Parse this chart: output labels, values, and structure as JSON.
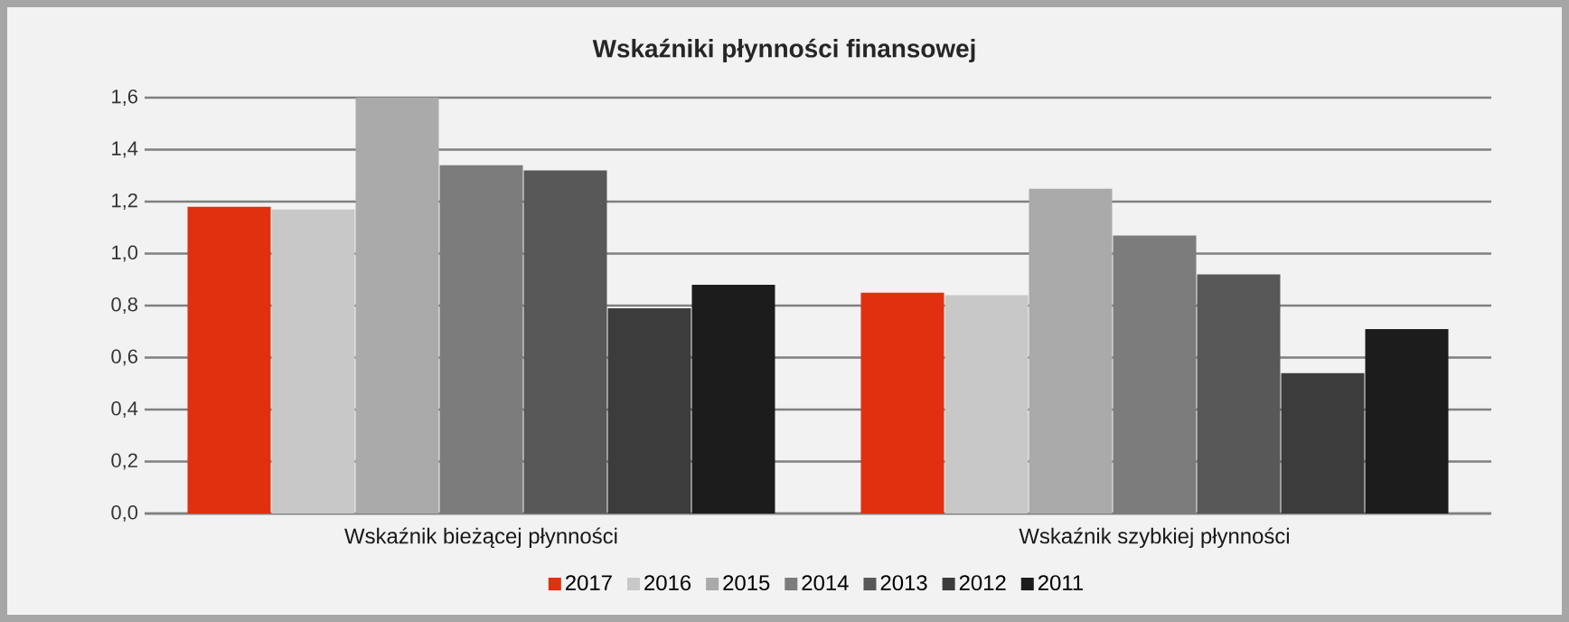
{
  "chart_data": {
    "type": "bar",
    "title": "Wskaźniki płynności finansowej",
    "categories": [
      "Wskaźnik  bieżącej płynności",
      "Wskaźnik szybkiej płynności"
    ],
    "series": [
      {
        "name": "2017",
        "color": "#e03010",
        "values": [
          1.18,
          0.85
        ]
      },
      {
        "name": "2016",
        "color": "#c8c8c8",
        "values": [
          1.17,
          0.84
        ]
      },
      {
        "name": "2015",
        "color": "#aaaaaa",
        "values": [
          1.6,
          1.25
        ]
      },
      {
        "name": "2014",
        "color": "#7c7c7c",
        "values": [
          1.34,
          1.07
        ]
      },
      {
        "name": "2013",
        "color": "#585858",
        "values": [
          1.32,
          0.92
        ]
      },
      {
        "name": "2012",
        "color": "#3c3c3c",
        "values": [
          0.79,
          0.54
        ]
      },
      {
        "name": "2011",
        "color": "#1c1c1c",
        "values": [
          0.88,
          0.71
        ]
      }
    ],
    "ylim": [
      0,
      1.6
    ],
    "yticks": [
      {
        "value": 0,
        "label": "0,0"
      },
      {
        "value": 0.2,
        "label": "0,2"
      },
      {
        "value": 0.4,
        "label": "0,4"
      },
      {
        "value": 0.6,
        "label": "0,6"
      },
      {
        "value": 0.8,
        "label": "0,8"
      },
      {
        "value": 1.0,
        "label": "1,0"
      },
      {
        "value": 1.2,
        "label": "1,2"
      },
      {
        "value": 1.4,
        "label": "1,4"
      },
      {
        "value": 1.6,
        "label": "1,6"
      }
    ],
    "grid": "y",
    "legend": "bottom"
  }
}
